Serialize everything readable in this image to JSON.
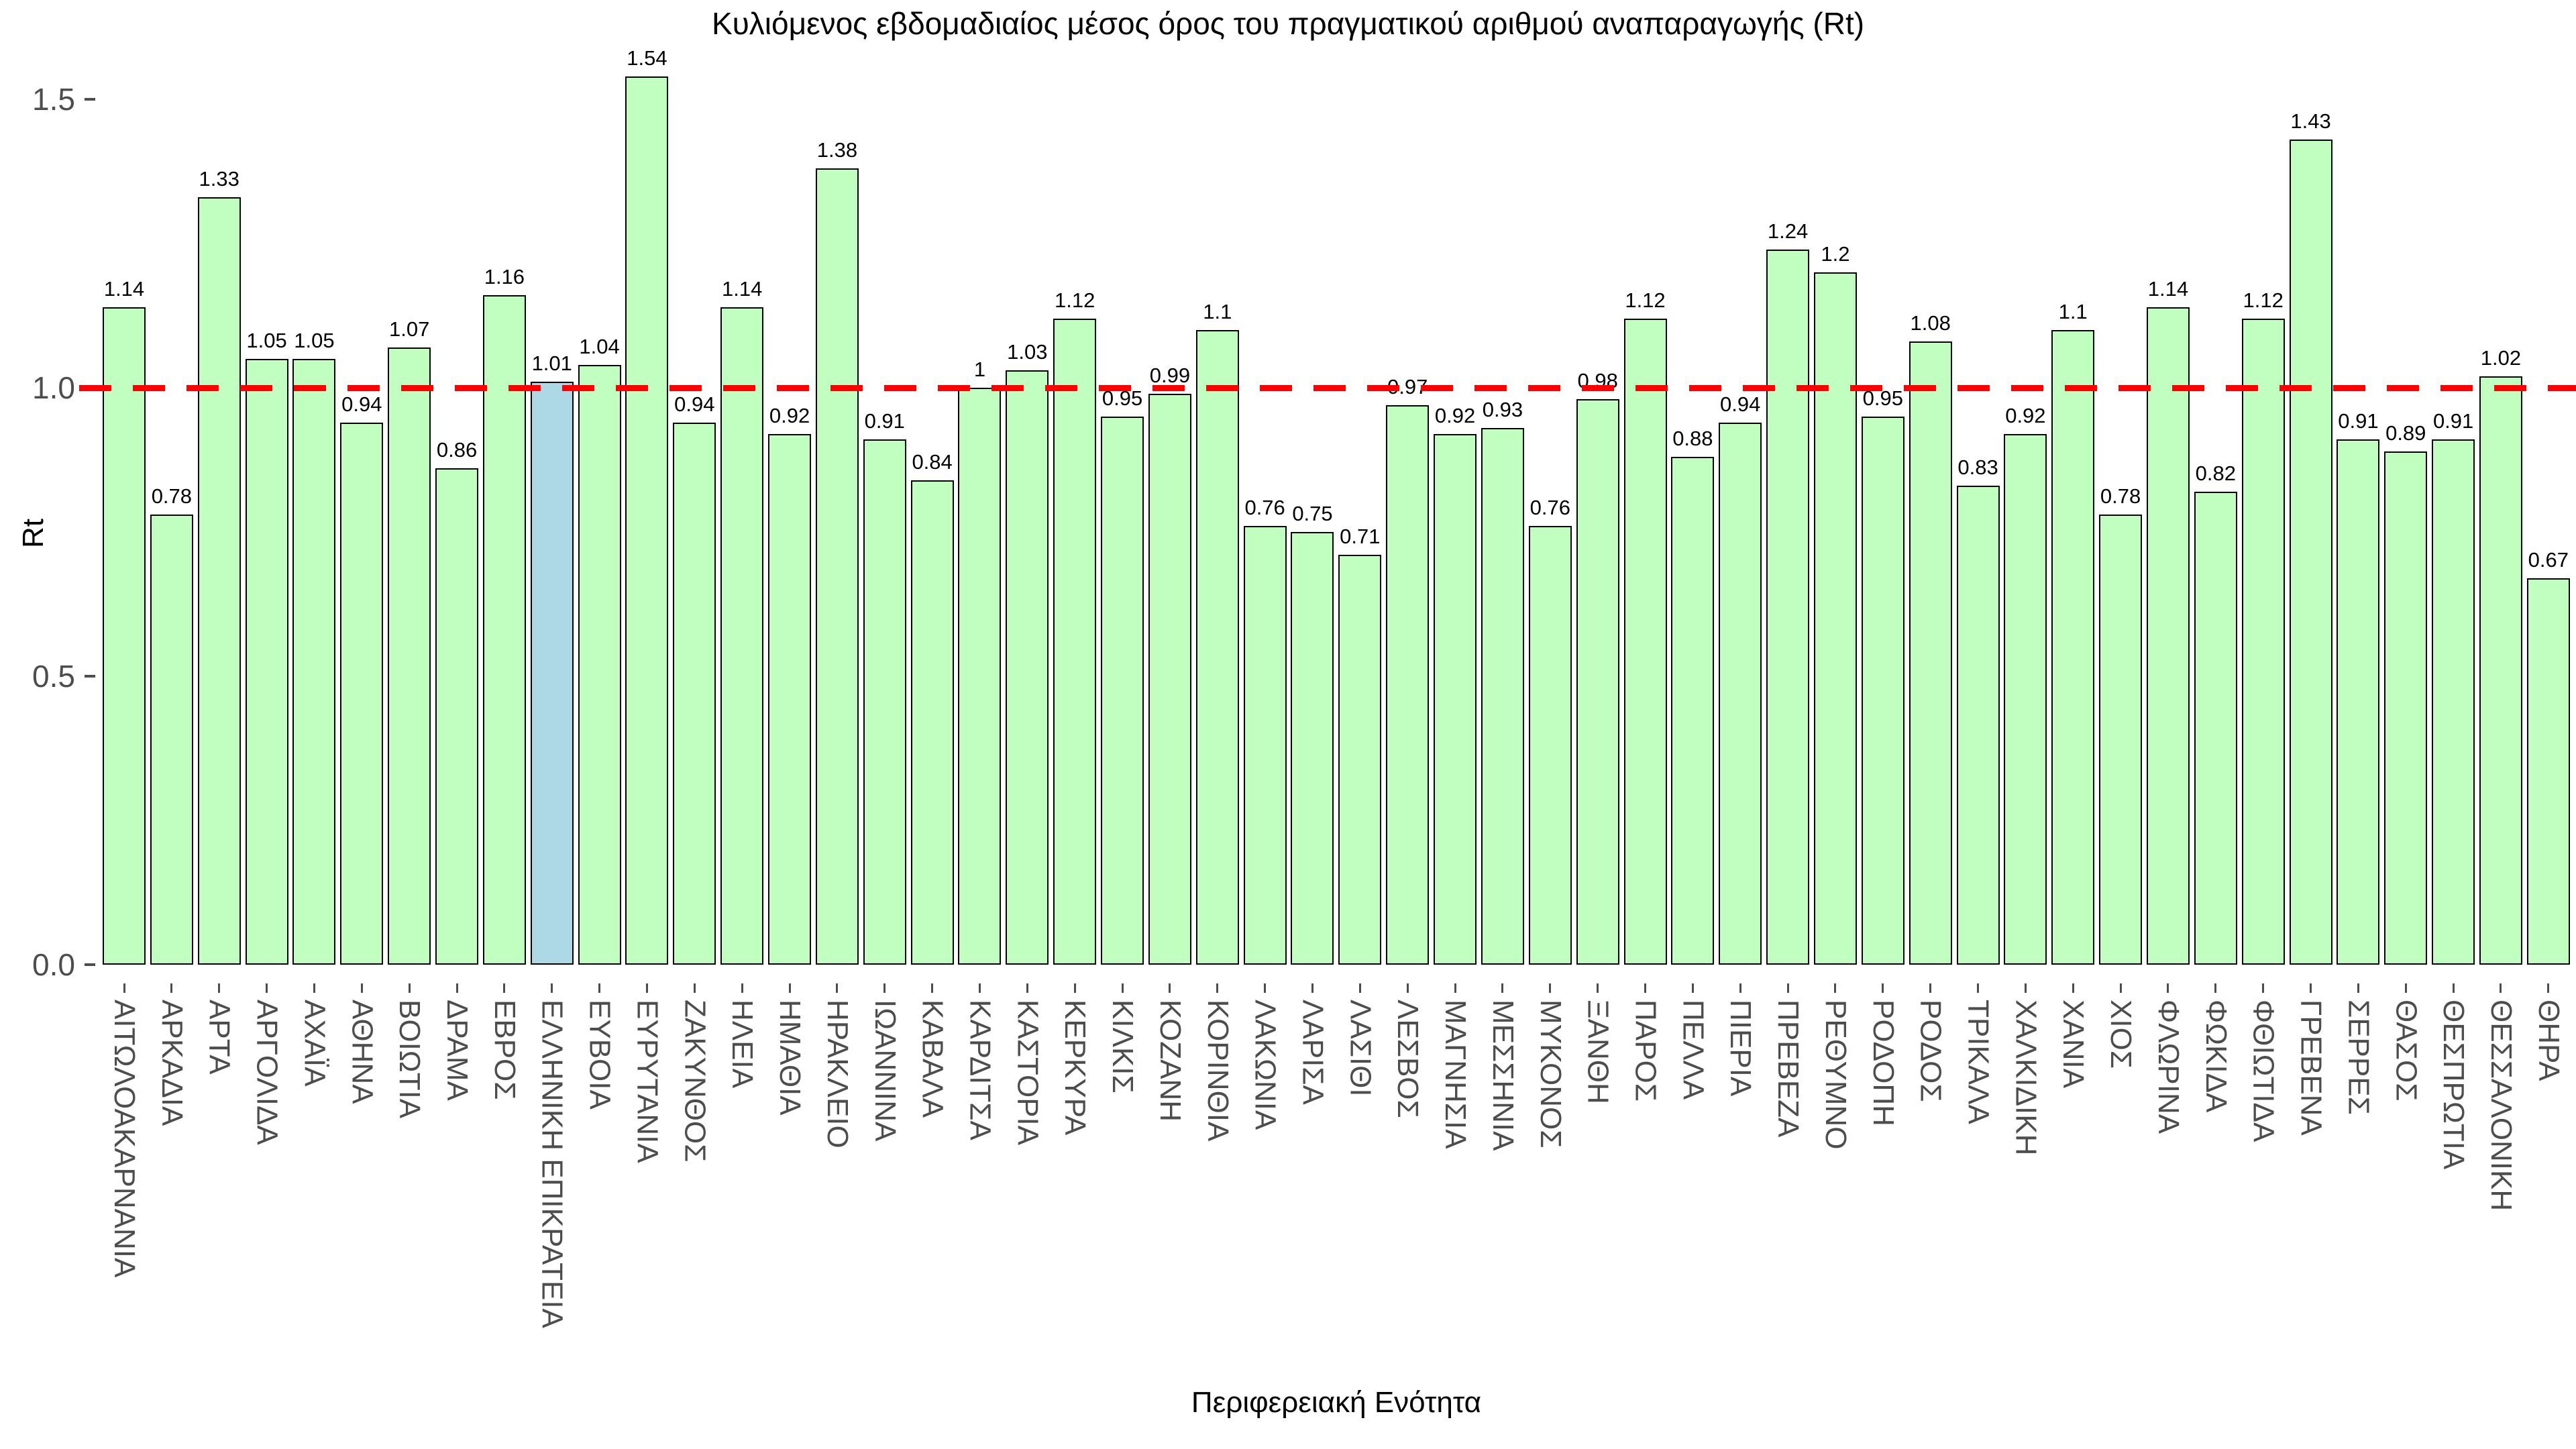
{
  "chart_data": {
    "type": "bar",
    "title": "Κυλιόμενος εβδομαδιαίος μέσος όρος του πραγματικού αριθμού αναπαραγωγής (Rt)",
    "xlabel": "Περιφερειακή Ενότητα",
    "ylabel": "Rt",
    "ylim": [
      0,
      1.55
    ],
    "yticks": [
      "0.0",
      "0.5",
      "1.0",
      "1.5"
    ],
    "grid": false,
    "legend": null,
    "reference_line": {
      "value": 1.0,
      "style": "dashed",
      "color": "#ff0000"
    },
    "bar_color": "#c1ffc1",
    "bar_border_color": "#000000",
    "axis_text_color": "#4d4d4d",
    "highlight": {
      "category": "ΕΛΛΗΝΙΚΗ ΕΠΙΚΡΑΤΕΙΑ",
      "index": 9,
      "color": "#add8e6"
    },
    "categories": [
      "ΑΙΤΩΛΟΑΚΑΡΝΑΝΙΑ",
      "ΑΡΚΑΔΙΑ",
      "ΑΡΤΑ",
      "ΑΡΓΟΛΙΔΑ",
      "ΑΧΑΪΑ",
      "ΑΘΗΝΑ",
      "ΒΟΙΩΤΙΑ",
      "ΔΡΑΜΑ",
      "ΕΒΡΟΣ",
      "ΕΛΛΗΝΙΚΗ ΕΠΙΚΡΑΤΕΙΑ",
      "ΕΥΒΟΙΑ",
      "ΕΥΡΥΤΑΝΙΑ",
      "ΖΑΚΥΝΘΟΣ",
      "ΗΛΕΙΑ",
      "ΗΜΑΘΙΑ",
      "ΗΡΑΚΛΕΙΟ",
      "ΙΩΑΝΝΙΝΑ",
      "ΚΑΒΑΛΑ",
      "ΚΑΡΔΙΤΣΑ",
      "ΚΑΣΤΟΡΙΑ",
      "ΚΕΡΚΥΡΑ",
      "ΚΙΛΚΙΣ",
      "ΚΟΖΑΝΗ",
      "ΚΟΡΙΝΘΙΑ",
      "ΛΑΚΩΝΙΑ",
      "ΛΑΡΙΣΑ",
      "ΛΑΣΙΘΙ",
      "ΛΕΣΒΟΣ",
      "ΜΑΓΝΗΣΙΑ",
      "ΜΕΣΣΗΝΙΑ",
      "ΜΥΚΟΝΟΣ",
      "ΞΑΝΘΗ",
      "ΠΑΡΟΣ",
      "ΠΕΛΛΑ",
      "ΠΙΕΡΙΑ",
      "ΠΡΕΒΕΖΑ",
      "ΡΕΘΥΜΝΟ",
      "ΡΟΔΟΠΗ",
      "ΡΟΔΟΣ",
      "ΤΡΙΚΑΛΑ",
      "ΧΑΛΚΙΔΙΚΗ",
      "ΧΑΝΙΑ",
      "ΧΙΟΣ",
      "ΦΛΩΡΙΝΑ",
      "ΦΩΚΙΔΑ",
      "ΦΘΙΩΤΙΔΑ",
      "ΓΡΕΒΕΝΑ",
      "ΣΕΡΡΕΣ",
      "ΘΑΣΟΣ",
      "ΘΕΣΠΡΩΤΙΑ",
      "ΘΕΣΣΑΛΟΝΙΚΗ",
      "ΘΗΡΑ"
    ],
    "values": [
      1.14,
      0.78,
      1.33,
      1.05,
      1.05,
      0.94,
      1.07,
      0.86,
      1.16,
      1.01,
      1.04,
      1.54,
      0.94,
      1.14,
      0.92,
      1.38,
      0.91,
      0.84,
      1,
      1.03,
      1.12,
      0.95,
      0.99,
      1.1,
      0.76,
      0.75,
      0.71,
      0.97,
      0.92,
      0.93,
      0.76,
      0.98,
      1.12,
      0.88,
      0.94,
      1.24,
      1.2,
      0.95,
      1.08,
      0.83,
      0.92,
      1.1,
      0.78,
      1.14,
      0.82,
      1.12,
      1.43,
      0.91,
      0.89,
      0.91,
      1.02,
      0.67
    ]
  }
}
